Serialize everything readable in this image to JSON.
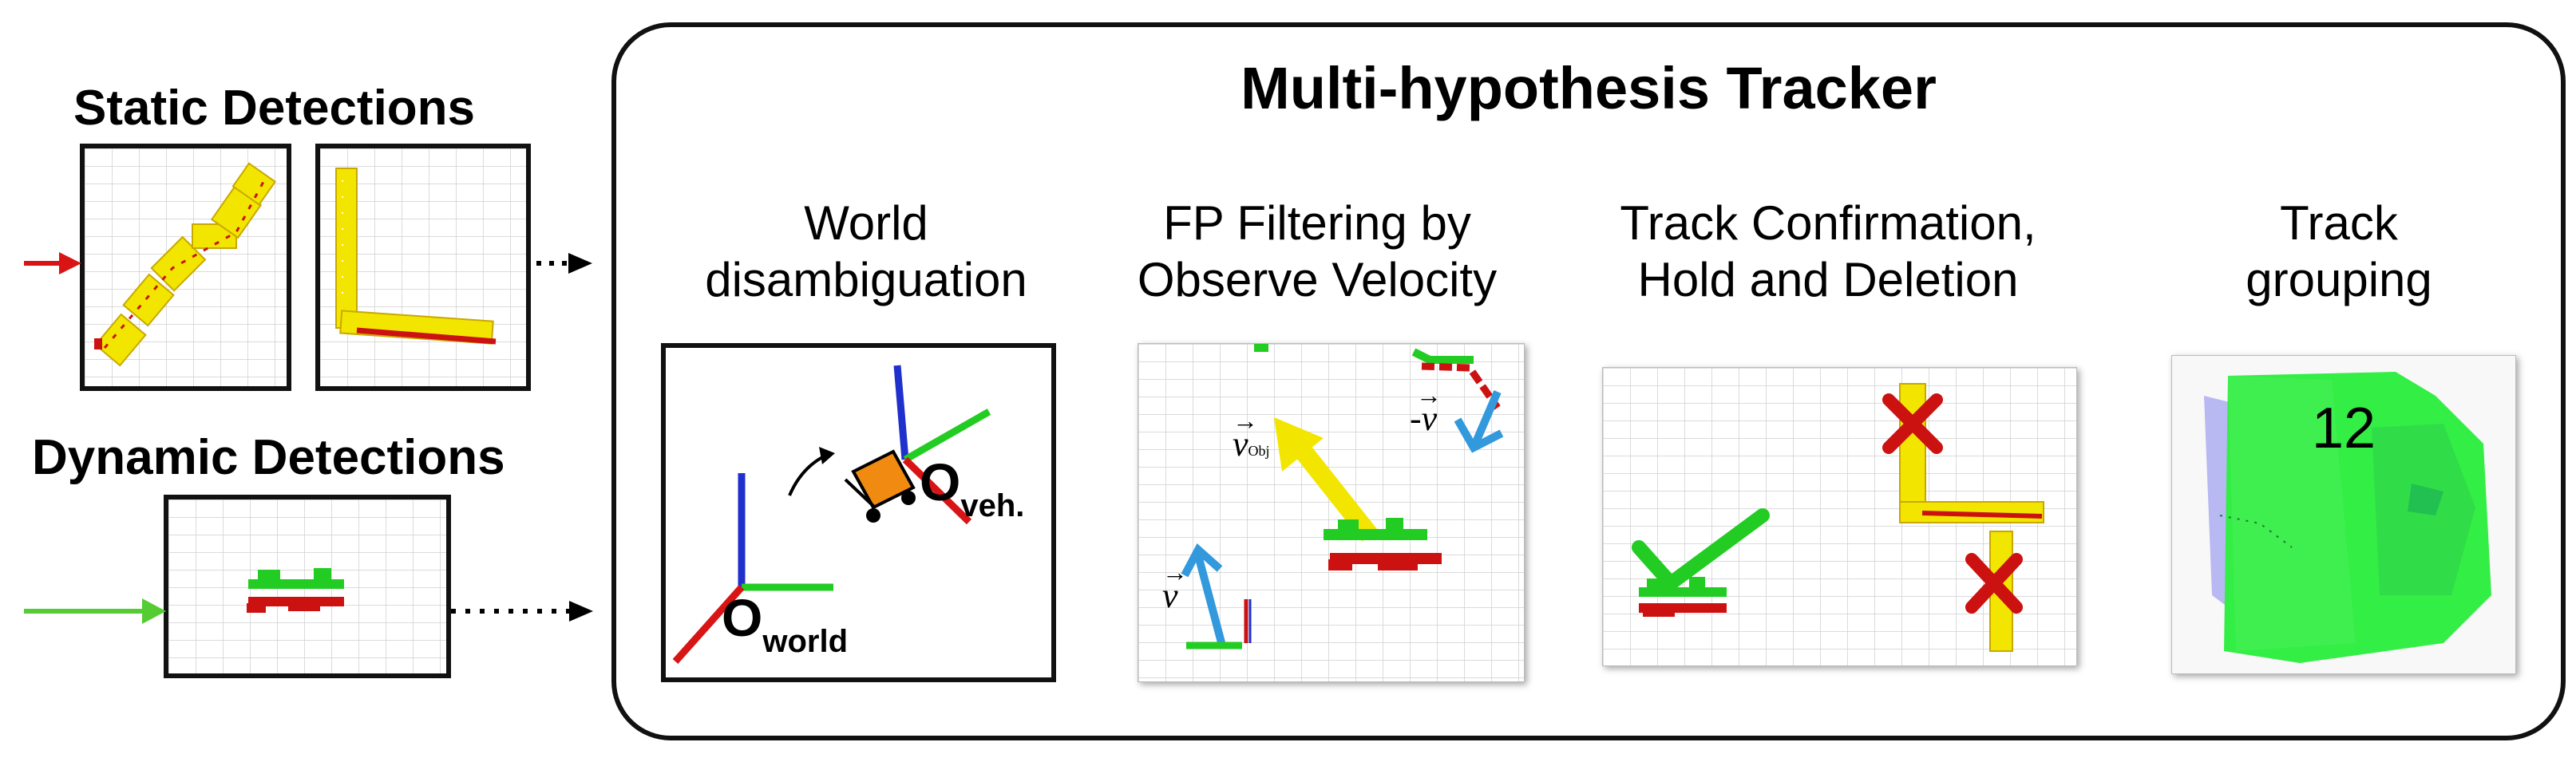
{
  "inputs": {
    "static_label": "Static Detections",
    "dynamic_label": "Dynamic Detections",
    "static_arrow_color": "#d81414",
    "dynamic_arrow_color": "#55cc33"
  },
  "tracker": {
    "title": "Multi-hypothesis Tracker",
    "stages": [
      {
        "title": "World\ndisambiguation"
      },
      {
        "title": "FP Filtering by\nObserve Velocity"
      },
      {
        "title": "Track Confirmation,\nHold and Deletion"
      },
      {
        "title": "Track\ngrouping"
      }
    ]
  },
  "world_panel": {
    "origin_world": "O",
    "origin_world_sub": "world",
    "origin_vehicle": "O",
    "origin_vehicle_sub": "veh."
  },
  "velocity_panel": {
    "v_obj_label": "v",
    "v_obj_sub": "Obj",
    "v_neg_label": "-v",
    "v_label": "v"
  },
  "grouping_panel": {
    "track_id": "12"
  },
  "colors": {
    "yellow": "#f2e600",
    "red": "#cc1111",
    "green": "#22cc22",
    "blue": "#2030cc",
    "orange": "#f08a10",
    "sky": "#3399dd",
    "group_green": "#33ee44"
  }
}
